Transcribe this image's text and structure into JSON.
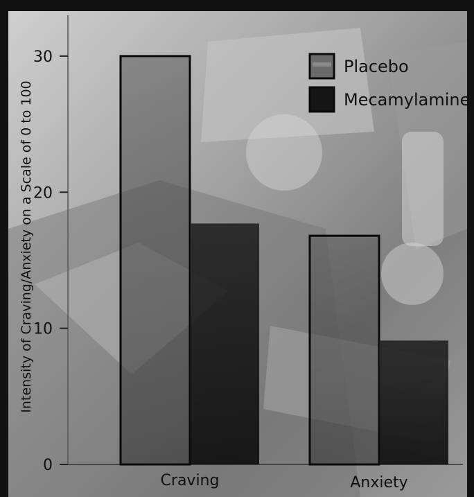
{
  "chart_data": {
    "type": "bar",
    "categories": [
      "Craving",
      "Anxiety"
    ],
    "series": [
      {
        "name": "Placebo",
        "values": [
          30,
          16.8
        ]
      },
      {
        "name": "Mecamylamine",
        "values": [
          17.7,
          9.1
        ]
      }
    ],
    "ylabel": "Intensity of Craving/Anxiety on a Scale of 0 to 100",
    "xlabel": "",
    "yticks": [
      0,
      10,
      20,
      30
    ],
    "ylim": [
      0,
      33
    ],
    "legend_position": "top-right",
    "grid": false
  },
  "colors": {
    "frame": "#121212",
    "photo_background": "#8c8c8c",
    "placebo_fill": "#6a6a6a",
    "mecamylamine_fill": "#151515",
    "bar_outline": "#0a0a0a",
    "text": "#111111"
  }
}
